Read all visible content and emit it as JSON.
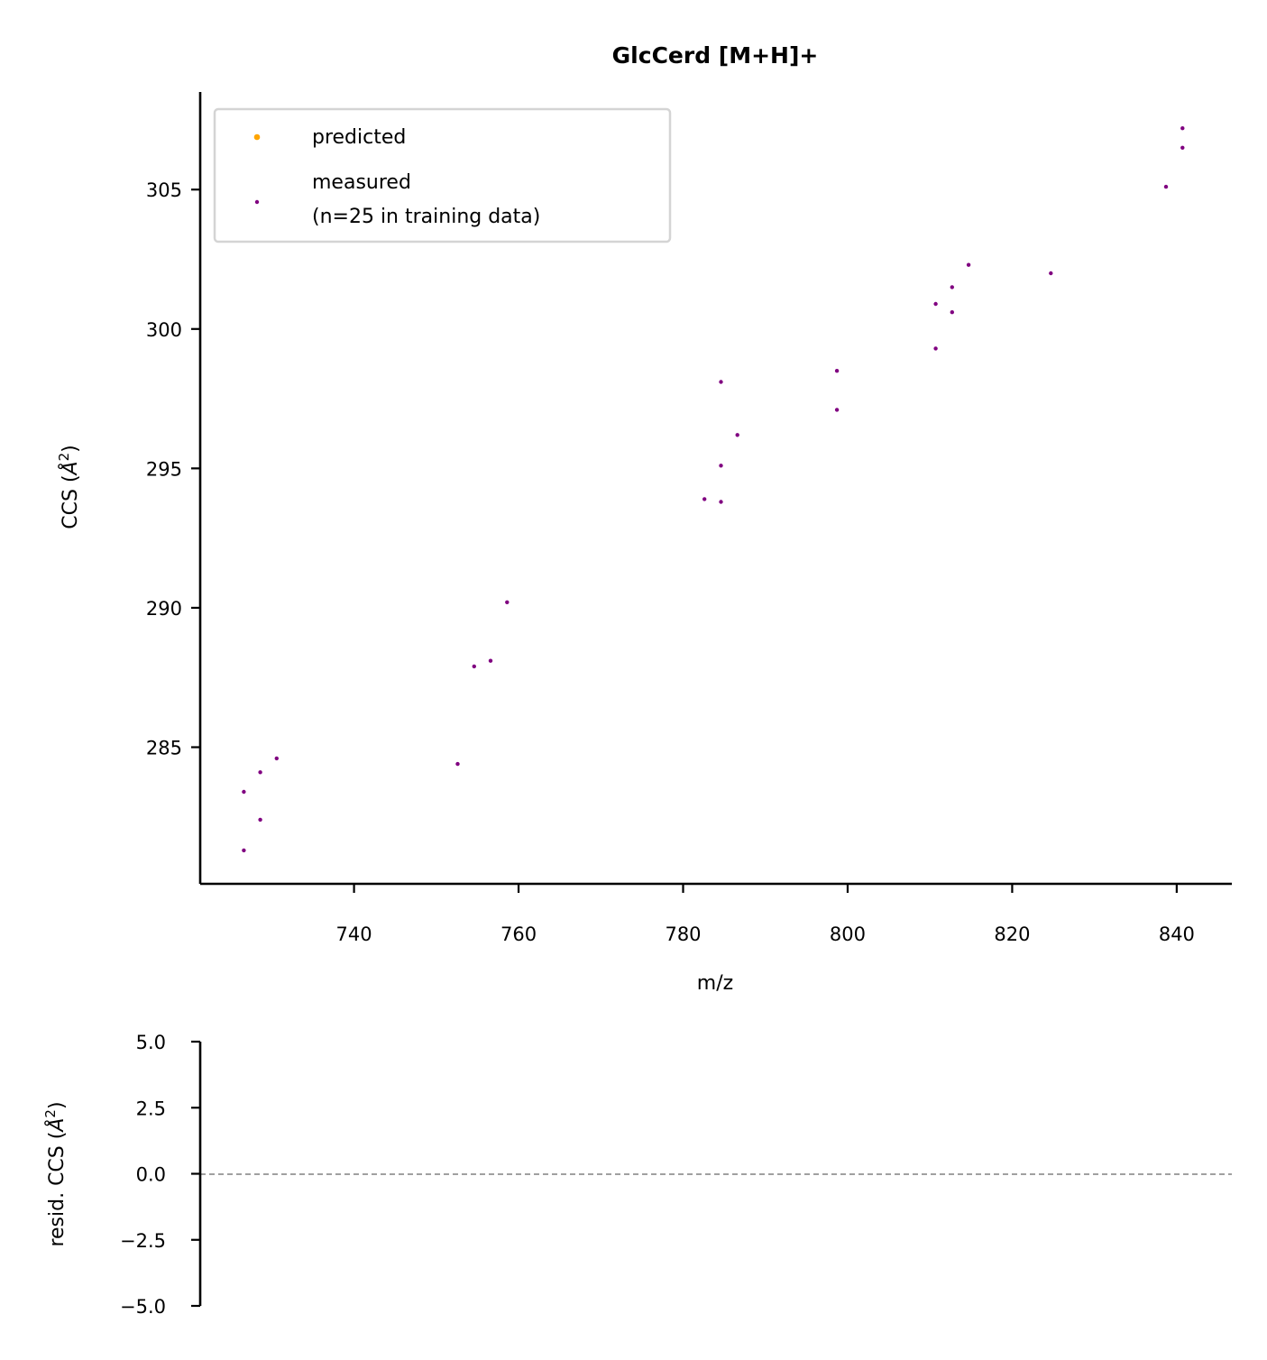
{
  "chart_data": [
    {
      "type": "scatter",
      "title": "GlcCerd [M+H]+",
      "xlabel": "m/z",
      "ylabel": "CCS (",
      "ylabel_unit": "Å",
      "xlim": [
        721.3,
        846.7
      ],
      "ylim": [
        280.1,
        308.5
      ],
      "xticks": [
        740,
        760,
        780,
        800,
        820,
        840
      ],
      "xtick_labels": [
        "740",
        "760",
        "780",
        "800",
        "820",
        "840"
      ],
      "yticks": [
        285,
        290,
        295,
        300,
        305
      ],
      "ytick_labels": [
        "285",
        "290",
        "295",
        "300",
        "305"
      ],
      "grid": false,
      "legend_position": "top-left",
      "legend": [
        {
          "label": "predicted",
          "color": "#ffa500"
        },
        {
          "label_lines": [
            "measured",
            "(n=25 in training data)"
          ],
          "color": "#800080"
        }
      ],
      "series": [
        {
          "name": "predicted",
          "color": "#ffa500",
          "points": []
        },
        {
          "name": "measured",
          "color": "#800080",
          "points": [
            {
              "x": 726.6,
              "y": 283.4
            },
            {
              "x": 726.6,
              "y": 281.3
            },
            {
              "x": 728.6,
              "y": 284.1
            },
            {
              "x": 728.6,
              "y": 282.4
            },
            {
              "x": 730.6,
              "y": 284.6
            },
            {
              "x": 752.6,
              "y": 284.4
            },
            {
              "x": 754.6,
              "y": 287.9
            },
            {
              "x": 756.6,
              "y": 288.1
            },
            {
              "x": 758.6,
              "y": 290.2
            },
            {
              "x": 782.6,
              "y": 293.9
            },
            {
              "x": 784.6,
              "y": 293.8
            },
            {
              "x": 784.6,
              "y": 295.1
            },
            {
              "x": 784.6,
              "y": 298.1
            },
            {
              "x": 786.6,
              "y": 296.2
            },
            {
              "x": 798.7,
              "y": 297.1
            },
            {
              "x": 798.7,
              "y": 298.5
            },
            {
              "x": 810.7,
              "y": 299.3
            },
            {
              "x": 810.7,
              "y": 300.9
            },
            {
              "x": 812.7,
              "y": 300.6
            },
            {
              "x": 812.7,
              "y": 301.5
            },
            {
              "x": 814.7,
              "y": 302.3
            },
            {
              "x": 824.7,
              "y": 302.0
            },
            {
              "x": 838.7,
              "y": 305.1
            },
            {
              "x": 840.7,
              "y": 306.5
            },
            {
              "x": 840.7,
              "y": 307.2
            }
          ]
        }
      ]
    },
    {
      "type": "scatter",
      "title": "",
      "xlabel": "",
      "ylabel": "resid. CCS (",
      "ylabel_unit": "Å",
      "ylim": [
        -5.0,
        5.0
      ],
      "yticks": [
        5.0,
        2.5,
        0.0,
        -2.5,
        -5.0
      ],
      "ytick_labels": [
        "5.0",
        "2.5",
        "0.0",
        "−2.5",
        "−5.0"
      ],
      "grid": false,
      "reference_line": {
        "y": 0.0,
        "style": "dashed",
        "color": "#808080"
      },
      "series": []
    }
  ]
}
